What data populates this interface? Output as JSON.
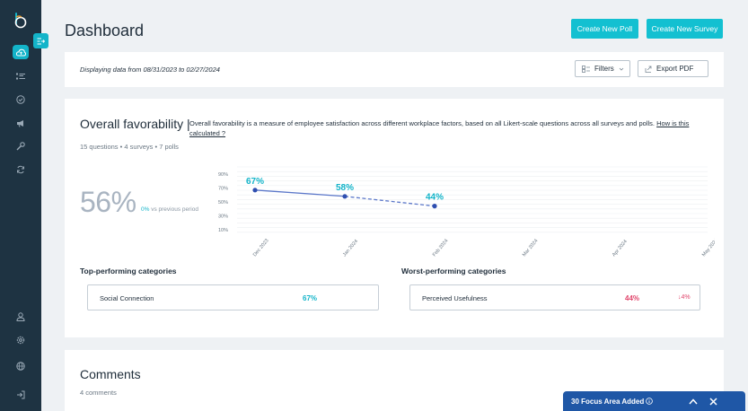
{
  "sidebar": {
    "items": [
      {
        "icon": "cloud-upload-icon",
        "active": true
      },
      {
        "icon": "list-icon",
        "active": false
      },
      {
        "icon": "check-circle-icon",
        "active": false
      },
      {
        "icon": "megaphone-icon",
        "active": false
      },
      {
        "icon": "wrench-icon",
        "active": false
      },
      {
        "icon": "sync-icon",
        "active": false
      }
    ],
    "bottom_items": [
      {
        "icon": "user-icon"
      },
      {
        "icon": "settings-icon"
      },
      {
        "icon": "globe-icon"
      },
      {
        "icon": "logout-icon"
      }
    ]
  },
  "header": {
    "title": "Dashboard",
    "create_poll_label": "Create New Poll",
    "create_survey_label": "Create New Survey"
  },
  "filters_bar": {
    "range_text": "Displaying data from 08/31/2023 to 02/27/2024",
    "filters_label": "Filters",
    "export_label": "Export PDF"
  },
  "favorability": {
    "title": "Overall favorability |",
    "description": "Overall favorability is a measure of employee satisfaction across different workplace factors, based on all Likert-scale questions across all surveys and polls.",
    "link_text": "How is this calculated ?",
    "meta": "15 questions • 4 surveys • 7 polls",
    "score": "56%",
    "delta_pct": "0%",
    "delta_text": "vs previous period",
    "top_title": "Top-performing categories",
    "worst_title": "Worst-performing categories",
    "top_category": {
      "name": "Social Connection",
      "value": "67%"
    },
    "worst_category": {
      "name": "Perceived Usefulness",
      "value": "44%",
      "delta": "↓4%"
    }
  },
  "chart_data": {
    "type": "line",
    "x": [
      "Dec 2023",
      "Jan 2024",
      "Feb 2024",
      "Mar 2024",
      "Apr 2024",
      "May 2024"
    ],
    "y_ticks": [
      "90%",
      "70%",
      "50%",
      "30%",
      "10%"
    ],
    "ylim": [
      0,
      100
    ],
    "series": [
      {
        "values": [
          67,
          58,
          44,
          null,
          null,
          null
        ],
        "labels": [
          "67%",
          "58%",
          "44%"
        ]
      }
    ],
    "colors": {
      "line": "#5b77c9",
      "point": "#2f4fb0",
      "label": "#13b4c9"
    },
    "grid": true
  },
  "comments": {
    "title": "Comments",
    "count": "4 comments"
  },
  "toast": {
    "label": "30 Focus Area Added"
  }
}
